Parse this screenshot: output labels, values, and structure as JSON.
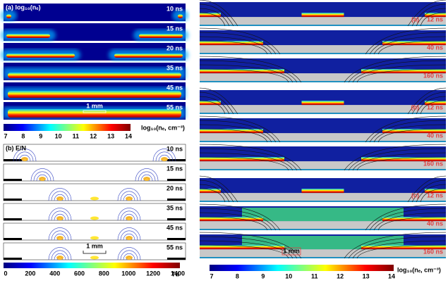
{
  "left_a": {
    "label": "(a) log₁₀(nₑ)",
    "times": [
      "10 ns",
      "15 ns",
      "20 ns",
      "35 ns",
      "45 ns",
      "55 ns"
    ],
    "scale": "1 mm",
    "colorbar": {
      "ticks": [
        "7",
        "8",
        "9",
        "10",
        "11",
        "12",
        "13",
        "14"
      ],
      "label": "log₁₀(nₑ, cm⁻³)"
    }
  },
  "left_b": {
    "label": "(b) E/N",
    "times": [
      "10 ns",
      "15 ns",
      "20 ns",
      "35 ns",
      "45 ns",
      "55 ns"
    ],
    "scale": "1 mm",
    "colorbar": {
      "ticks": [
        "0",
        "200",
        "400",
        "600",
        "800",
        "1000",
        "1200",
        "1400"
      ],
      "label": "Td"
    }
  },
  "right": {
    "groups": [
      {
        "label": "(a)",
        "times": [
          "12 ns",
          "40 ns",
          "160 ns"
        ]
      },
      {
        "label": "(b)",
        "times": [
          "12 ns",
          "40 ns",
          "160 ns"
        ]
      },
      {
        "label": "(c)",
        "times": [
          "12 ns",
          "40 ns",
          "160 ns"
        ]
      }
    ],
    "scale": "1 mm",
    "colorbar": {
      "ticks": [
        "7",
        "8",
        "9",
        "10",
        "11",
        "12",
        "13",
        "14"
      ],
      "label": "log₁₀(nₑ, cm⁻³)"
    }
  }
}
